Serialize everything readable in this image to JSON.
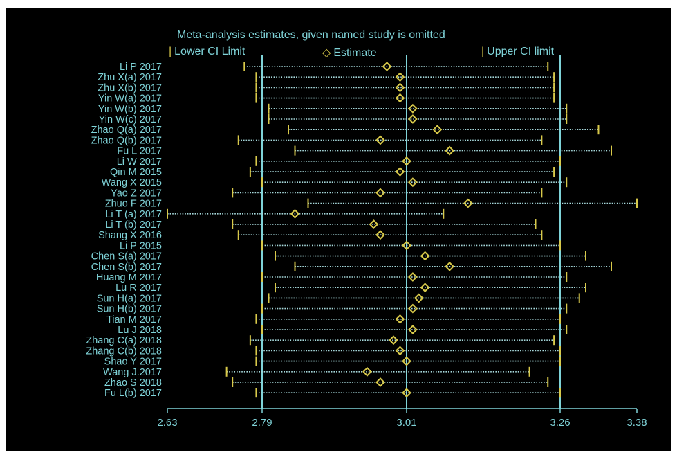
{
  "chart_data": {
    "type": "scatter",
    "title": "Meta-analysis estimates, given named study is omitted",
    "legend": {
      "position": "top",
      "items": [
        {
          "glyph": "|",
          "label": "Lower CI Limit"
        },
        {
          "glyph": "◇",
          "label": "Estimate"
        },
        {
          "glyph": "|",
          "label": "Upper CI limit"
        }
      ]
    },
    "x_ticks": [
      "2.63",
      "2.79",
      "3.01",
      "3.26",
      "3.38"
    ],
    "x_tick_values": [
      2.63,
      2.79,
      3.01,
      3.26,
      3.38
    ],
    "reference_lines": [
      2.79,
      3.01,
      3.26
    ],
    "xlim": [
      2.63,
      3.38
    ],
    "studies": [
      {
        "name": "Li P 2017",
        "lower": 2.76,
        "estimate": 2.98,
        "upper": 3.24
      },
      {
        "name": "Zhu X(a) 2017",
        "lower": 2.78,
        "estimate": 3.0,
        "upper": 3.25
      },
      {
        "name": "Zhu X(b) 2017",
        "lower": 2.78,
        "estimate": 3.0,
        "upper": 3.25
      },
      {
        "name": "Yin W(a) 2017",
        "lower": 2.78,
        "estimate": 3.0,
        "upper": 3.25
      },
      {
        "name": "Yin W(b) 2017",
        "lower": 2.8,
        "estimate": 3.02,
        "upper": 3.27
      },
      {
        "name": "Yin W(c) 2017",
        "lower": 2.8,
        "estimate": 3.02,
        "upper": 3.27
      },
      {
        "name": "Zhao Q(a) 2017",
        "lower": 2.83,
        "estimate": 3.06,
        "upper": 3.32
      },
      {
        "name": "Zhao Q(b) 2017",
        "lower": 2.75,
        "estimate": 2.97,
        "upper": 3.23
      },
      {
        "name": "Fu L 2017",
        "lower": 2.84,
        "estimate": 3.08,
        "upper": 3.34
      },
      {
        "name": "Li W 2017",
        "lower": 2.78,
        "estimate": 3.01,
        "upper": 3.26
      },
      {
        "name": "Qin M 2015",
        "lower": 2.77,
        "estimate": 3.0,
        "upper": 3.25
      },
      {
        "name": "Wang X 2015",
        "lower": 2.79,
        "estimate": 3.02,
        "upper": 3.27
      },
      {
        "name": "Yao Z 2017",
        "lower": 2.74,
        "estimate": 2.97,
        "upper": 3.23
      },
      {
        "name": "Zhuo F 2017",
        "lower": 2.86,
        "estimate": 3.11,
        "upper": 3.38
      },
      {
        "name": "Li T (a) 2017",
        "lower": 2.63,
        "estimate": 2.84,
        "upper": 3.07
      },
      {
        "name": "Li T (b) 2017",
        "lower": 2.74,
        "estimate": 2.96,
        "upper": 3.22
      },
      {
        "name": "Shang X 2016",
        "lower": 2.75,
        "estimate": 2.97,
        "upper": 3.23
      },
      {
        "name": "Li P 2015",
        "lower": 2.79,
        "estimate": 3.01,
        "upper": 3.26
      },
      {
        "name": "Chen S(a) 2017",
        "lower": 2.81,
        "estimate": 3.04,
        "upper": 3.3
      },
      {
        "name": "Chen S(b) 2017",
        "lower": 2.84,
        "estimate": 3.08,
        "upper": 3.34
      },
      {
        "name": "Huang M 2017",
        "lower": 2.79,
        "estimate": 3.02,
        "upper": 3.27
      },
      {
        "name": "Lu R 2017",
        "lower": 2.81,
        "estimate": 3.04,
        "upper": 3.3
      },
      {
        "name": "Sun H(a) 2017",
        "lower": 2.8,
        "estimate": 3.03,
        "upper": 3.29
      },
      {
        "name": "Sun H(b) 2017",
        "lower": 2.79,
        "estimate": 3.02,
        "upper": 3.27
      },
      {
        "name": "Tian M 2017",
        "lower": 2.78,
        "estimate": 3.0,
        "upper": 3.26
      },
      {
        "name": "Lu J 2018",
        "lower": 2.79,
        "estimate": 3.02,
        "upper": 3.27
      },
      {
        "name": "Zhang C(a) 2018",
        "lower": 2.77,
        "estimate": 2.99,
        "upper": 3.25
      },
      {
        "name": "Zhang C(b) 2018",
        "lower": 2.78,
        "estimate": 3.0,
        "upper": 3.26
      },
      {
        "name": "Shao Y 2017",
        "lower": 2.78,
        "estimate": 3.01,
        "upper": 3.26
      },
      {
        "name": "Wang J.2017",
        "lower": 2.73,
        "estimate": 2.95,
        "upper": 3.21
      },
      {
        "name": "Zhao S 2018",
        "lower": 2.74,
        "estimate": 2.97,
        "upper": 3.24
      },
      {
        "name": "Fu L(b) 2017",
        "lower": 2.78,
        "estimate": 3.01,
        "upper": 3.26
      }
    ]
  },
  "colors": {
    "background": "#000000",
    "text": "#7fd3d8",
    "axis": "#7fd3d8",
    "interval": "#a7d9dc",
    "marker": "#d8c94a"
  }
}
